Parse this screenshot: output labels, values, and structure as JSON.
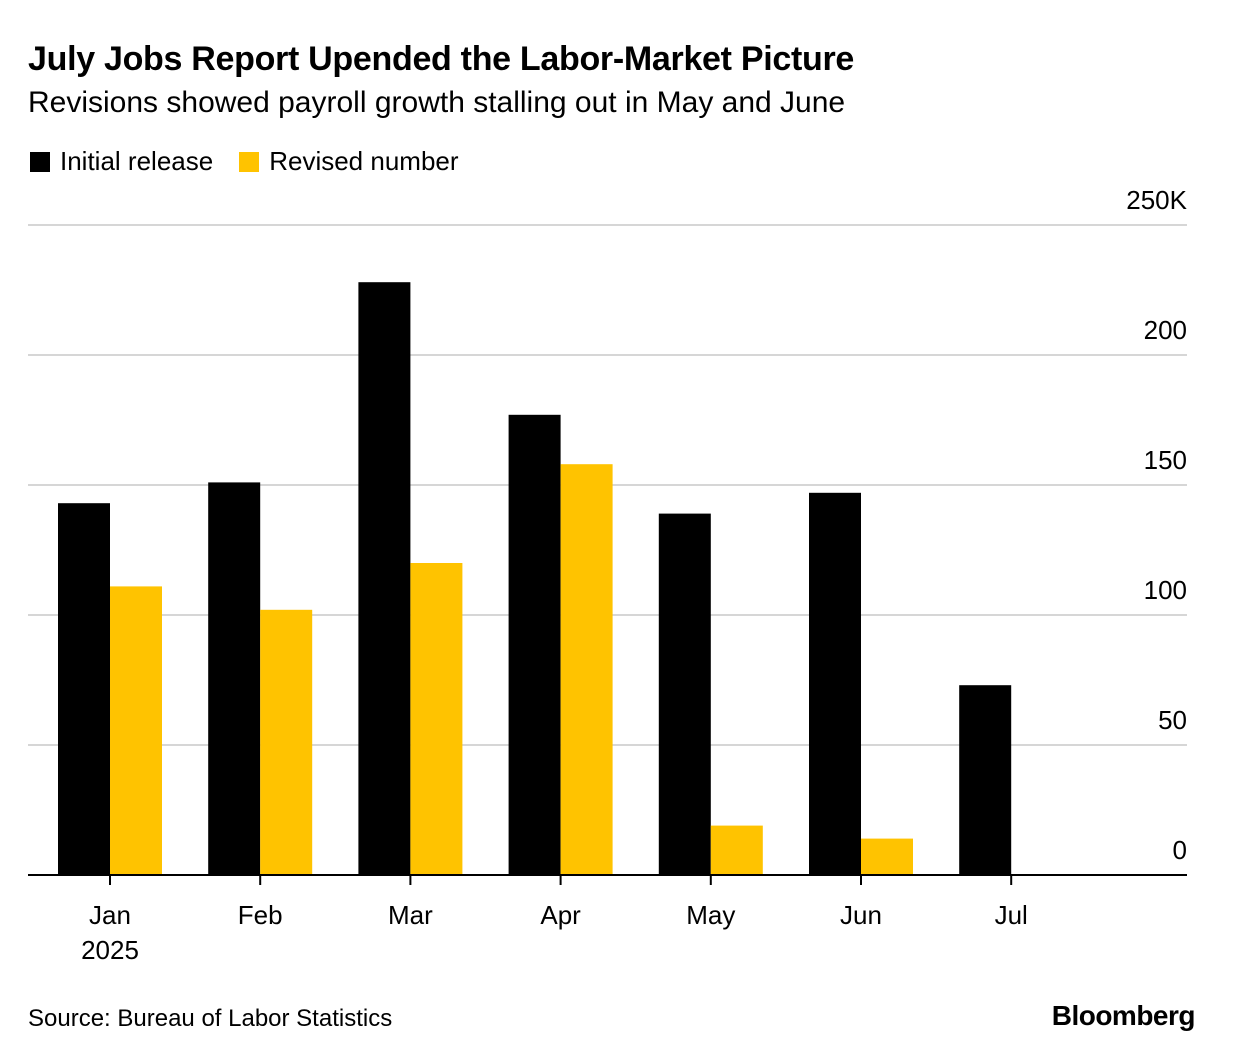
{
  "chart_data": {
    "type": "bar",
    "title": "July Jobs Report Upended the Labor-Market Picture",
    "subtitle": "Revisions showed payroll growth stalling out in May and June",
    "categories": [
      "Jan",
      "Feb",
      "Mar",
      "Apr",
      "May",
      "Jun",
      "Jul"
    ],
    "category_sublabels": [
      "2025",
      "",
      "",
      "",
      "",
      "",
      ""
    ],
    "series": [
      {
        "name": "Initial release",
        "color": "#000000",
        "values": [
          143,
          151,
          228,
          177,
          139,
          147,
          73
        ]
      },
      {
        "name": "Revised number",
        "color": "#ffc300",
        "values": [
          111,
          102,
          120,
          158,
          19,
          14,
          null
        ]
      }
    ],
    "yaxis": {
      "ticks": [
        "0",
        "50",
        "100",
        "150",
        "200",
        "250K"
      ],
      "tick_values": [
        0,
        50,
        100,
        150,
        200,
        250
      ],
      "position": "right"
    },
    "ylim": [
      0,
      250
    ],
    "grid": true,
    "legend_position": "top-left",
    "xlabel": "",
    "ylabel": ""
  },
  "source": "Source: Bureau of Labor Statistics",
  "brand": "Bloomberg"
}
